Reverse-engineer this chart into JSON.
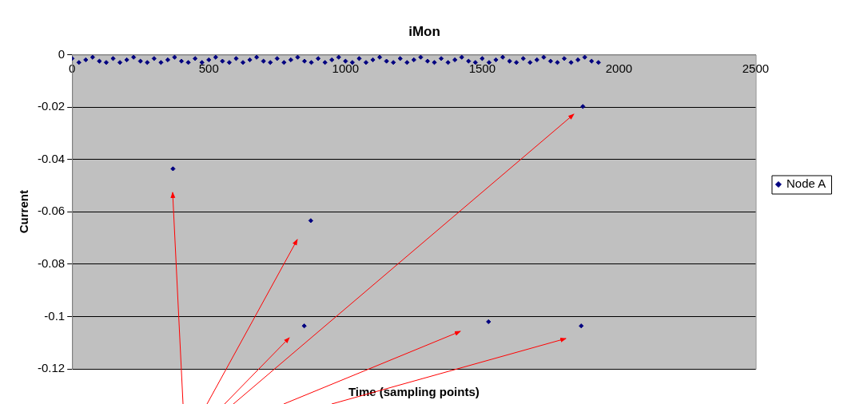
{
  "chart_data": {
    "type": "scatter",
    "title": "iMon",
    "xlabel": "Time (sampling points)",
    "ylabel": "Current",
    "xlim": [
      0,
      2500
    ],
    "xticks": [
      0,
      500,
      1000,
      1500,
      2000,
      2500
    ],
    "ylim": [
      -0.12,
      0
    ],
    "yticks": [
      0,
      -0.02,
      -0.04,
      -0.06,
      -0.08,
      -0.1,
      -0.12
    ],
    "grid": "y",
    "legend": "right",
    "marker": "diamond",
    "series": [
      {
        "name": "Node A",
        "color": "#000080",
        "x": [
          0,
          25,
          50,
          75,
          100,
          125,
          150,
          175,
          200,
          225,
          250,
          275,
          300,
          325,
          350,
          375,
          400,
          425,
          450,
          475,
          500,
          525,
          550,
          575,
          600,
          625,
          650,
          675,
          700,
          725,
          750,
          775,
          800,
          825,
          850,
          875,
          900,
          925,
          950,
          975,
          1000,
          1025,
          1050,
          1075,
          1100,
          1125,
          1150,
          1175,
          1200,
          1225,
          1250,
          1275,
          1300,
          1325,
          1350,
          1375,
          1400,
          1425,
          1450,
          1475,
          1500,
          1525,
          1550,
          1575,
          1600,
          1625,
          1650,
          1675,
          1700,
          1725,
          1750,
          1775,
          1800,
          1825,
          1850,
          1875,
          1900,
          1925,
          369,
          873,
          849,
          1523,
          1862,
          1868
        ],
        "values": [
          -0.0015,
          -0.003,
          -0.002,
          -0.001,
          -0.0025,
          -0.003,
          -0.0015,
          -0.003,
          -0.002,
          -0.001,
          -0.0025,
          -0.003,
          -0.0015,
          -0.003,
          -0.002,
          -0.001,
          -0.0025,
          -0.003,
          -0.0015,
          -0.003,
          -0.002,
          -0.001,
          -0.0025,
          -0.003,
          -0.0015,
          -0.003,
          -0.002,
          -0.001,
          -0.0025,
          -0.003,
          -0.0015,
          -0.003,
          -0.002,
          -0.001,
          -0.0025,
          -0.003,
          -0.0015,
          -0.003,
          -0.002,
          -0.001,
          -0.0025,
          -0.003,
          -0.0015,
          -0.003,
          -0.002,
          -0.001,
          -0.0025,
          -0.003,
          -0.0015,
          -0.003,
          -0.002,
          -0.001,
          -0.0025,
          -0.003,
          -0.0015,
          -0.003,
          -0.002,
          -0.001,
          -0.0025,
          -0.003,
          -0.0015,
          -0.003,
          -0.002,
          -0.001,
          -0.0025,
          -0.003,
          -0.0015,
          -0.003,
          -0.002,
          -0.001,
          -0.0025,
          -0.003,
          -0.0015,
          -0.003,
          -0.002,
          -0.001,
          -0.0025,
          -0.003,
          -0.0436,
          -0.0634,
          -0.1036,
          -0.102,
          -0.1036,
          -0.0198
        ]
      }
    ]
  }
}
